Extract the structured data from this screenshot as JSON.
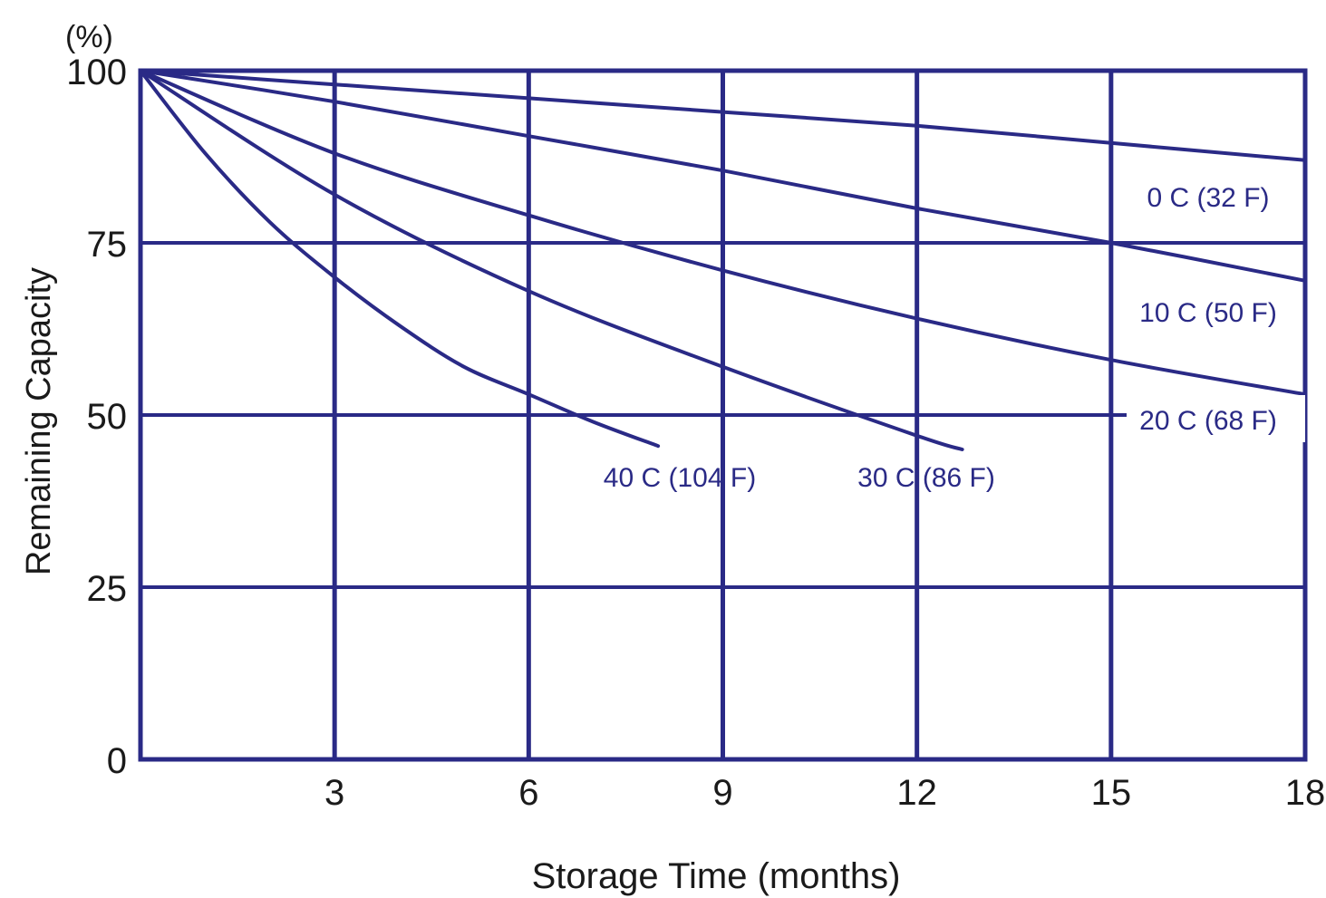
{
  "chart_data": {
    "type": "line",
    "title": "",
    "xlabel": "Storage Time (months)",
    "ylabel": "Remaining Capacity",
    "yunit": "(%)",
    "xlim": [
      0,
      18
    ],
    "ylim": [
      0,
      100
    ],
    "xticks": [
      3,
      6,
      9,
      12,
      15,
      18
    ],
    "yticks": [
      0,
      25,
      50,
      75,
      100
    ],
    "grid": true,
    "legend": "inline labels at line ends",
    "color": "#2a2a86",
    "series": [
      {
        "name": "0 C (32 F)",
        "x": [
          0,
          3,
          6,
          9,
          12,
          15,
          18
        ],
        "y": [
          100,
          98,
          96,
          94,
          92,
          89.5,
          87
        ]
      },
      {
        "name": "10 C (50 F)",
        "x": [
          0,
          3,
          6,
          9,
          12,
          15,
          18
        ],
        "y": [
          100,
          95.5,
          90.5,
          85.5,
          80,
          75,
          69.5
        ]
      },
      {
        "name": "20 C (68 F)",
        "x": [
          0,
          3,
          6,
          9,
          12,
          15,
          18
        ],
        "y": [
          100,
          88,
          79,
          71,
          64,
          58,
          53
        ]
      },
      {
        "name": "30 C (86 F)",
        "x": [
          0,
          3,
          6,
          9,
          12,
          12.7
        ],
        "y": [
          100,
          82,
          68,
          57,
          47,
          45
        ]
      },
      {
        "name": "40 C (104 F)",
        "x": [
          0,
          1,
          2,
          3,
          4,
          5,
          6,
          7,
          8
        ],
        "y": [
          100,
          88,
          78,
          70,
          63,
          57,
          53,
          49,
          45.5
        ]
      }
    ]
  }
}
